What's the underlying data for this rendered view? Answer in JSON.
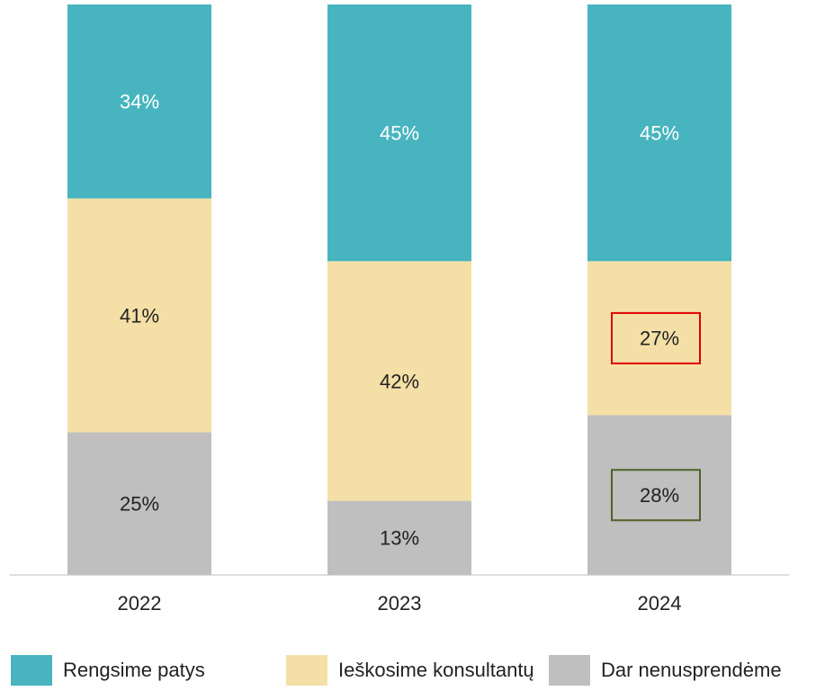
{
  "chart_data": {
    "type": "stacked_bar",
    "categories": [
      "2022",
      "2023",
      "2024"
    ],
    "ylim": [
      0,
      100
    ],
    "series": [
      {
        "name": "Dar nenusprendėme",
        "color": "#bfbfbf",
        "values": [
          25,
          13,
          28
        ],
        "value_labels": [
          "25%",
          "13%",
          "28%"
        ]
      },
      {
        "name": "Ieškosime konsultantų",
        "color": "#f4e0a6",
        "values": [
          41,
          42,
          27
        ],
        "value_labels": [
          "41%",
          "42%",
          "27%"
        ]
      },
      {
        "name": "Rengsime patys",
        "color": "#47b4bf",
        "values": [
          34,
          45,
          45
        ],
        "value_labels": [
          "34%",
          "45%",
          "45%"
        ]
      }
    ],
    "label_boxes": [
      {
        "series": 1,
        "index": 2,
        "color": "#e00000"
      },
      {
        "series": 0,
        "index": 2,
        "color": "#4f6228"
      }
    ]
  }
}
